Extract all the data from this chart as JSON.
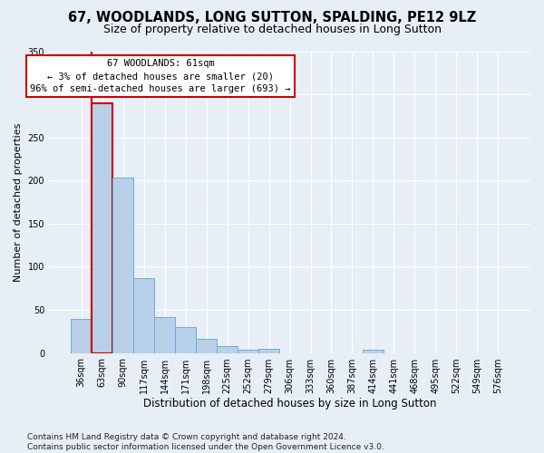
{
  "title": "67, WOODLANDS, LONG SUTTON, SPALDING, PE12 9LZ",
  "subtitle": "Size of property relative to detached houses in Long Sutton",
  "xlabel": "Distribution of detached houses by size in Long Sutton",
  "ylabel": "Number of detached properties",
  "footnote": "Contains HM Land Registry data © Crown copyright and database right 2024.\nContains public sector information licensed under the Open Government Licence v3.0.",
  "bar_labels": [
    "36sqm",
    "63sqm",
    "90sqm",
    "117sqm",
    "144sqm",
    "171sqm",
    "198sqm",
    "225sqm",
    "252sqm",
    "279sqm",
    "306sqm",
    "333sqm",
    "360sqm",
    "387sqm",
    "414sqm",
    "441sqm",
    "468sqm",
    "495sqm",
    "522sqm",
    "549sqm",
    "576sqm"
  ],
  "bar_values": [
    40,
    290,
    203,
    87,
    42,
    30,
    16,
    8,
    4,
    5,
    0,
    0,
    0,
    0,
    4,
    0,
    0,
    0,
    0,
    0,
    0
  ],
  "bar_color": "#b8d0e8",
  "bar_edge_color": "#6aaed6",
  "highlight_bar_index": 1,
  "highlight_color": "#cc0000",
  "annotation_text": "67 WOODLANDS: 61sqm\n← 3% of detached houses are smaller (20)\n96% of semi-detached houses are larger (693) →",
  "annotation_box_facecolor": "white",
  "annotation_box_edgecolor": "#cc0000",
  "ylim": [
    0,
    350
  ],
  "yticks": [
    0,
    50,
    100,
    150,
    200,
    250,
    300,
    350
  ],
  "bg_color": "#e8eef6",
  "grid_color": "#ffffff",
  "title_fontsize": 10.5,
  "subtitle_fontsize": 9,
  "ylabel_fontsize": 8,
  "xlabel_fontsize": 8.5,
  "tick_fontsize": 7,
  "footnote_fontsize": 6.5
}
